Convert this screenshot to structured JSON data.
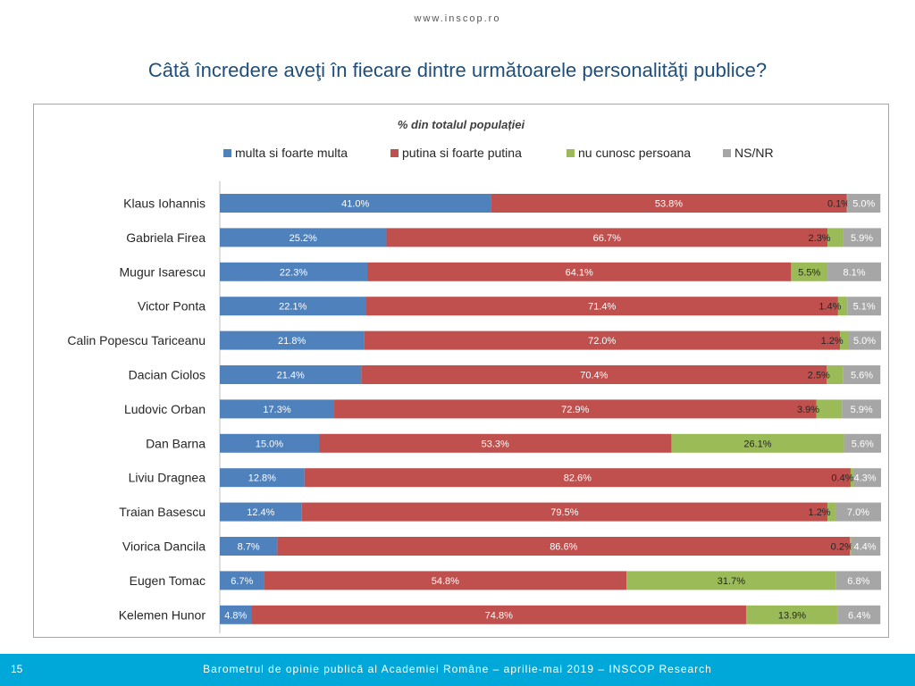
{
  "header": {
    "url": "www.inscop.ro",
    "title": "Câtă încredere aveţi în fiecare dintre următoarele personalităţi publice?"
  },
  "footer": {
    "page_number": "15",
    "text": "Barometrul de opinie publică al Academiei Române – aprilie-mai 2019 – INSCOP Research"
  },
  "chart_data": {
    "type": "bar",
    "orientation": "horizontal",
    "stacked": true,
    "subtitle": "% din totalul populației",
    "legend_position": "top",
    "xlim": [
      0,
      100
    ],
    "categories": [
      "Klaus Iohannis",
      "Gabriela Firea",
      "Mugur Isarescu",
      "Victor Ponta",
      "Calin Popescu Tariceanu",
      "Dacian Ciolos",
      "Ludovic Orban",
      "Dan Barna",
      "Liviu Dragnea",
      "Traian Basescu",
      "Viorica Dancila",
      "Eugen Tomac",
      "Kelemen Hunor"
    ],
    "series": [
      {
        "name": "multa si foarte multa",
        "color": "#4f81bd",
        "values": [
          41.0,
          25.2,
          22.3,
          22.1,
          21.8,
          21.4,
          17.3,
          15.0,
          12.8,
          12.4,
          8.7,
          6.7,
          4.8
        ]
      },
      {
        "name": "putina si foarte putina",
        "color": "#c0504d",
        "values": [
          53.8,
          66.7,
          64.1,
          71.4,
          72.0,
          70.4,
          72.9,
          53.3,
          82.6,
          79.5,
          86.6,
          54.8,
          74.8
        ]
      },
      {
        "name": "nu cunosc persoana",
        "color": "#9bbb59",
        "values": [
          0.1,
          2.3,
          5.5,
          1.4,
          1.2,
          2.5,
          3.9,
          26.1,
          0.4,
          1.2,
          0.2,
          31.7,
          13.9
        ]
      },
      {
        "name": "NS/NR",
        "color": "#a6a6a6",
        "values": [
          5.0,
          5.9,
          8.1,
          5.1,
          5.0,
          5.6,
          5.9,
          5.6,
          4.3,
          7.0,
          4.4,
          6.8,
          6.4
        ]
      }
    ],
    "labels": [
      [
        "41.0%",
        "53.8%",
        "0.1%",
        "5.0%"
      ],
      [
        "25.2%",
        "66.7%",
        "2.3%",
        "5.9%"
      ],
      [
        "22.3%",
        "64.1%",
        "5.5%",
        "8.1%"
      ],
      [
        "22.1%",
        "71.4%",
        "1.4%",
        "5.1%"
      ],
      [
        "21.8%",
        "72.0%",
        "1.2%",
        "5.0%"
      ],
      [
        "21.4%",
        "70.4%",
        "2.5%",
        "5.6%"
      ],
      [
        "17.3%",
        "72.9%",
        "3.9%",
        "5.9%"
      ],
      [
        "15.0%",
        "53.3%",
        "26.1%",
        "5.6%"
      ],
      [
        "12.8%",
        "82.6%",
        "0.4%",
        "4.3%"
      ],
      [
        "12.4%",
        "79.5%",
        "1.2%",
        "7.0%"
      ],
      [
        "8.7%",
        "86.6%",
        "0.2%",
        "4.4%"
      ],
      [
        "6.7%",
        "54.8%",
        "31.7%",
        "6.8%"
      ],
      [
        "4.8%",
        "74.8%",
        "13.9%",
        "6.4%"
      ]
    ]
  }
}
